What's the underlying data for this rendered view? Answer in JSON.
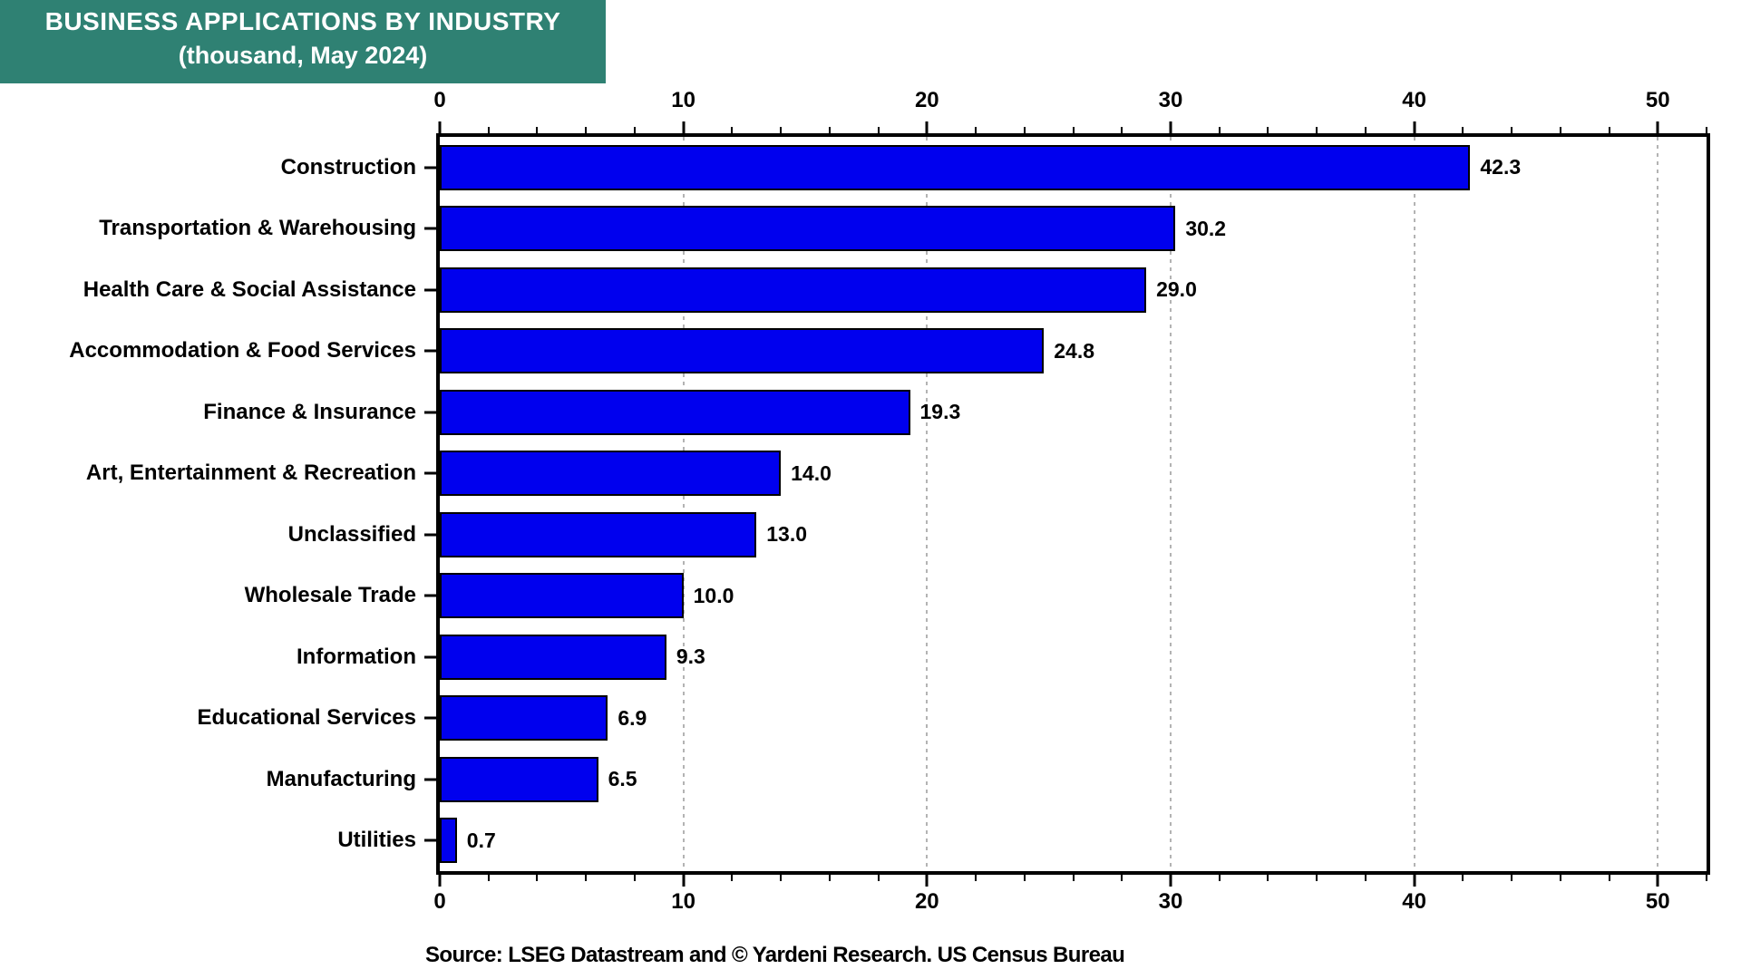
{
  "title": {
    "line1": "BUSINESS APPLICATIONS BY INDUSTRY",
    "line2": "(thousand, May 2024)"
  },
  "source_note": "Source: LSEG Datastream and © Yardeni Research. US Census Bureau",
  "colors": {
    "title_bg": "#2F8173",
    "title_text": "#FFFFFF",
    "bar": "#0000EE",
    "bar_border": "#000000",
    "gridline": "#B3B3B3",
    "axis": "#000000"
  },
  "chart_data": {
    "type": "bar",
    "orientation": "horizontal",
    "title": "BUSINESS APPLICATIONS BY INDUSTRY (thousand, May 2024)",
    "xlabel": "",
    "ylabel": "",
    "categories": [
      "Construction",
      "Transportation & Warehousing",
      "Health Care & Social Assistance",
      "Accommodation & Food Services",
      "Finance & Insurance",
      "Art, Entertainment & Recreation",
      "Unclassified",
      "Wholesale Trade",
      "Information",
      "Educational Services",
      "Manufacturing",
      "Utilities"
    ],
    "values": [
      42.3,
      30.2,
      29.0,
      24.8,
      19.3,
      14.0,
      13.0,
      10.0,
      9.3,
      6.9,
      6.5,
      0.7
    ],
    "value_labels": [
      "42.3",
      "30.2",
      "29.0",
      "24.8",
      "19.3",
      "14.0",
      "13.0",
      "10.0",
      "9.3",
      "6.9",
      "6.5",
      "0.7"
    ],
    "xlim": [
      0,
      52
    ],
    "x_major_ticks": [
      0,
      10,
      20,
      30,
      40,
      50
    ],
    "x_minor_tick_step": 2,
    "gridlines": [
      10,
      20,
      30,
      40,
      50
    ],
    "grid_style": "dotted",
    "tick_label_positions": [
      "top",
      "bottom"
    ],
    "legend": "none"
  }
}
